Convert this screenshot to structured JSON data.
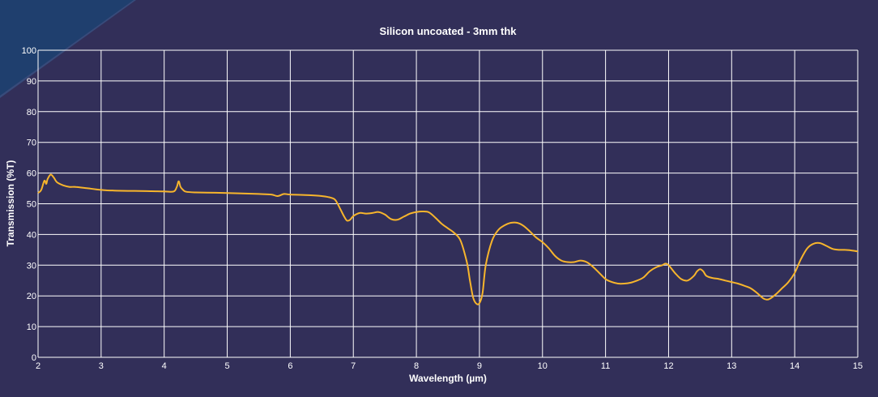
{
  "chart_data": {
    "type": "line",
    "title": "Silicon uncoated - 3mm thk",
    "xlabel": "Wavelength (µm)",
    "ylabel": "Transmission (%T)",
    "xlim": [
      2,
      15
    ],
    "ylim": [
      0,
      100
    ],
    "xticks": [
      2,
      3,
      4,
      5,
      6,
      7,
      8,
      9,
      10,
      11,
      12,
      13,
      14,
      15
    ],
    "yticks": [
      0,
      10,
      20,
      30,
      40,
      50,
      60,
      70,
      80,
      90,
      100
    ],
    "grid": true,
    "legend": "none",
    "colors": {
      "background": "#322f59",
      "line": "#f7b52c",
      "grid": "#ffffff",
      "corner_ribbon": "#1f3f6e"
    },
    "series": [
      {
        "x": [
          2.0,
          2.05,
          2.1,
          2.13,
          2.15,
          2.2,
          2.25,
          2.3,
          2.4,
          2.5,
          2.6,
          2.8,
          3.0,
          3.2,
          3.5,
          3.8,
          4.0,
          4.15,
          4.2,
          4.23,
          4.26,
          4.3,
          4.35,
          4.5,
          5.0,
          5.5,
          5.7,
          5.8,
          5.9,
          6.0,
          6.3,
          6.5,
          6.6,
          6.7,
          6.75,
          6.8,
          6.85,
          6.9,
          6.95,
          7.0,
          7.1,
          7.2,
          7.3,
          7.4,
          7.5,
          7.6,
          7.7,
          7.8,
          7.9,
          8.0,
          8.1,
          8.2,
          8.3,
          8.4,
          8.5,
          8.6,
          8.7,
          8.8,
          8.85,
          8.9,
          8.95,
          9.0,
          9.05,
          9.1,
          9.2,
          9.3,
          9.4,
          9.5,
          9.6,
          9.7,
          9.8,
          9.9,
          10.0,
          10.1,
          10.2,
          10.3,
          10.4,
          10.5,
          10.6,
          10.7,
          10.8,
          10.9,
          11.0,
          11.1,
          11.2,
          11.3,
          11.4,
          11.5,
          11.6,
          11.7,
          11.8,
          11.9,
          11.95,
          12.0,
          12.1,
          12.2,
          12.3,
          12.4,
          12.45,
          12.5,
          12.55,
          12.6,
          12.7,
          12.8,
          12.9,
          13.0,
          13.1,
          13.2,
          13.3,
          13.4,
          13.5,
          13.55,
          13.6,
          13.7,
          13.8,
          13.9,
          14.0,
          14.1,
          14.2,
          14.3,
          14.4,
          14.5,
          14.6,
          14.7,
          14.8,
          14.9,
          15.0
        ],
        "y": [
          53.5,
          54.5,
          57.5,
          56.5,
          58.0,
          59.5,
          58.5,
          57.0,
          56.0,
          55.5,
          55.5,
          55.0,
          54.5,
          54.3,
          54.2,
          54.1,
          54.0,
          54.0,
          55.5,
          57.3,
          55.5,
          54.5,
          53.9,
          53.7,
          53.5,
          53.2,
          53.0,
          52.5,
          53.2,
          53.0,
          52.8,
          52.5,
          52.2,
          51.5,
          50.0,
          48.0,
          46.0,
          44.5,
          44.8,
          46.0,
          47.0,
          46.8,
          47.0,
          47.3,
          46.5,
          45.0,
          44.8,
          45.8,
          46.8,
          47.3,
          47.5,
          47.2,
          45.5,
          43.5,
          42.0,
          40.5,
          38.0,
          31.0,
          25.0,
          19.5,
          17.5,
          17.6,
          21.0,
          30.0,
          38.0,
          41.5,
          43.0,
          43.8,
          43.8,
          42.8,
          41.0,
          39.0,
          37.5,
          35.5,
          33.0,
          31.5,
          31.0,
          31.0,
          31.5,
          31.0,
          29.5,
          27.5,
          25.5,
          24.5,
          24.0,
          24.0,
          24.3,
          25.0,
          26.0,
          28.0,
          29.3,
          30.0,
          30.5,
          30.0,
          27.5,
          25.5,
          25.0,
          26.5,
          28.0,
          28.7,
          28.0,
          26.5,
          25.8,
          25.5,
          25.0,
          24.5,
          24.0,
          23.3,
          22.5,
          21.0,
          19.2,
          18.8,
          19.0,
          20.5,
          22.5,
          24.5,
          27.5,
          32.0,
          35.5,
          37.0,
          37.2,
          36.3,
          35.3,
          35.0,
          35.0,
          34.8,
          34.5
        ]
      }
    ]
  }
}
